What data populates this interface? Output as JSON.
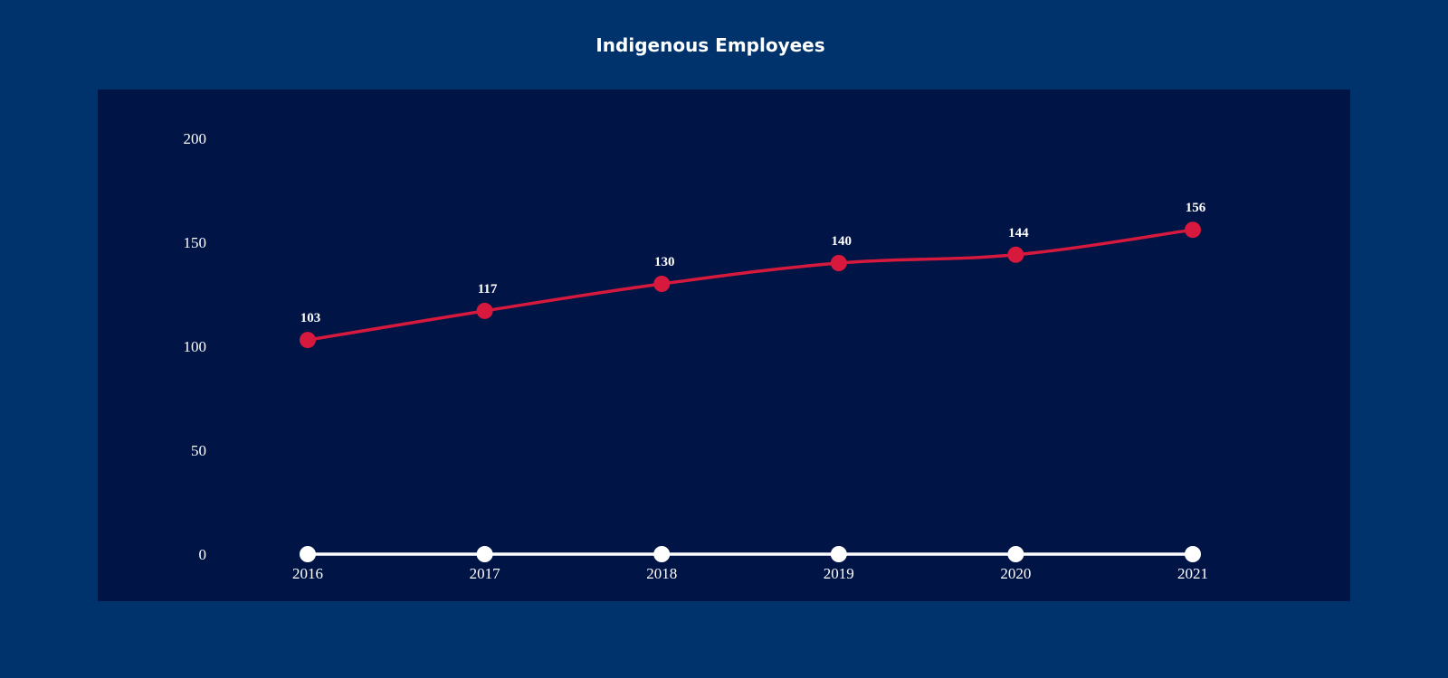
{
  "page": {
    "background": "#00336b",
    "panel_background": "#001445"
  },
  "chart_data": {
    "type": "line",
    "title": "Indigenous Employees",
    "xlabel": "",
    "ylabel": "",
    "categories": [
      "2016",
      "2017",
      "2018",
      "2019",
      "2020",
      "2021"
    ],
    "yticks": [
      0,
      50,
      100,
      150,
      200
    ],
    "ylim": [
      0,
      200
    ],
    "grid": false,
    "legend": "none",
    "series": [
      {
        "values": [
          103,
          117,
          130,
          140,
          144,
          156
        ],
        "color": "#d7193d",
        "data_labels": true
      },
      {
        "values": [
          0,
          0,
          0,
          0,
          0,
          0
        ],
        "color": "#ffffff",
        "data_labels": false
      }
    ]
  }
}
